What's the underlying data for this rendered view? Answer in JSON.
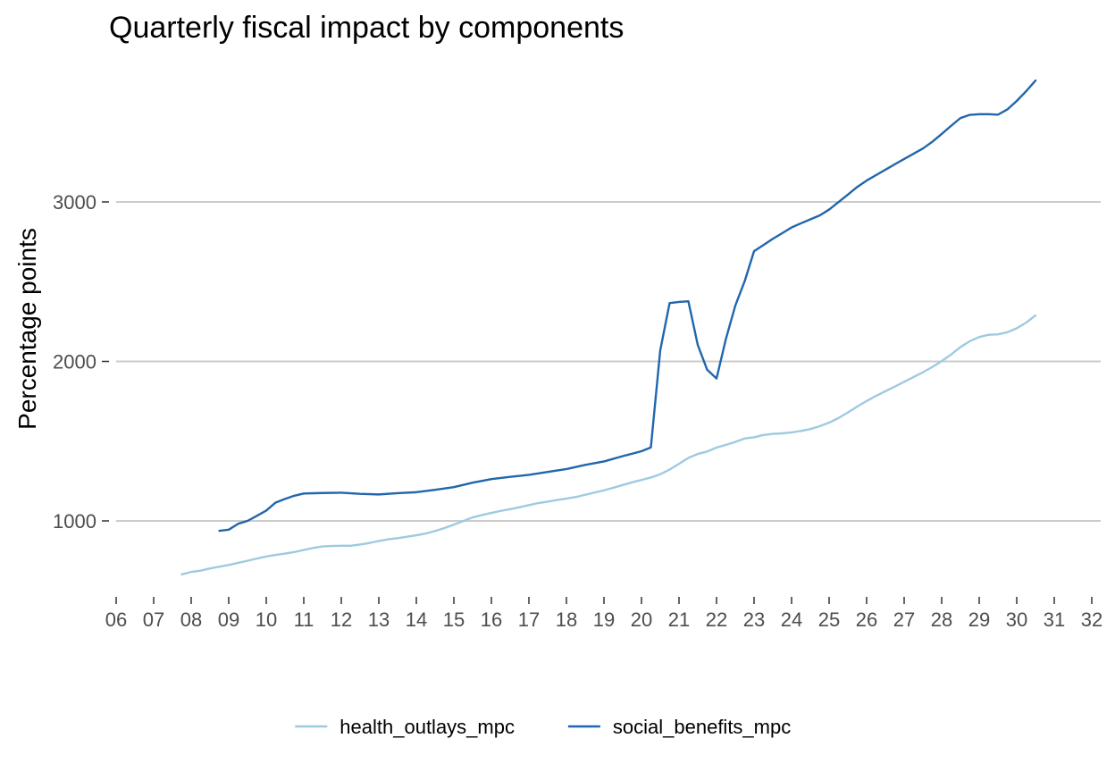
{
  "chart_data": {
    "type": "line",
    "title": "Quarterly fiscal impact  by components",
    "xlabel": "",
    "ylabel": "Percentage points",
    "x_axis": {
      "ticks": [
        2006,
        2007,
        2008,
        2009,
        2010,
        2011,
        2012,
        2013,
        2014,
        2015,
        2016,
        2017,
        2018,
        2019,
        2020,
        2021,
        2022,
        2023,
        2024,
        2025,
        2026,
        2027,
        2028,
        2029,
        2030,
        2031,
        2032
      ],
      "tick_labels": [
        "06",
        "07",
        "08",
        "09",
        "10",
        "11",
        "12",
        "13",
        "14",
        "15",
        "16",
        "17",
        "18",
        "19",
        "20",
        "21",
        "22",
        "23",
        "24",
        "25",
        "26",
        "27",
        "28",
        "29",
        "30",
        "31",
        "32"
      ],
      "range": [
        2006,
        2032
      ]
    },
    "y_axis": {
      "ticks": [
        1000,
        2000,
        3000
      ],
      "tick_labels": [
        "1000",
        "2000",
        "3000"
      ],
      "range": [
        620,
        3830
      ]
    },
    "grid": "horizontal-major",
    "legend_position": "bottom",
    "series": [
      {
        "name": "health_outlays_mpc",
        "color": "#9ecae1",
        "points": [
          [
            2007.75,
            665
          ],
          [
            2008.0,
            680
          ],
          [
            2008.25,
            688
          ],
          [
            2008.5,
            702
          ],
          [
            2008.75,
            713
          ],
          [
            2009.0,
            724
          ],
          [
            2009.25,
            737
          ],
          [
            2009.5,
            750
          ],
          [
            2009.75,
            764
          ],
          [
            2010.0,
            777
          ],
          [
            2010.25,
            787
          ],
          [
            2010.5,
            795
          ],
          [
            2010.75,
            805
          ],
          [
            2011.0,
            818
          ],
          [
            2011.25,
            830
          ],
          [
            2011.5,
            840
          ],
          [
            2011.75,
            843
          ],
          [
            2012.0,
            844
          ],
          [
            2012.25,
            844
          ],
          [
            2012.5,
            852
          ],
          [
            2012.75,
            862
          ],
          [
            2013.0,
            874
          ],
          [
            2013.25,
            885
          ],
          [
            2013.5,
            892
          ],
          [
            2013.75,
            901
          ],
          [
            2014.0,
            910
          ],
          [
            2014.25,
            921
          ],
          [
            2014.5,
            937
          ],
          [
            2014.75,
            955
          ],
          [
            2015.0,
            977
          ],
          [
            2015.25,
            999
          ],
          [
            2015.5,
            1022
          ],
          [
            2015.75,
            1037
          ],
          [
            2016.0,
            1050
          ],
          [
            2016.25,
            1063
          ],
          [
            2016.5,
            1074
          ],
          [
            2016.75,
            1086
          ],
          [
            2017.0,
            1099
          ],
          [
            2017.25,
            1112
          ],
          [
            2017.5,
            1121
          ],
          [
            2017.75,
            1131
          ],
          [
            2018.0,
            1140
          ],
          [
            2018.25,
            1150
          ],
          [
            2018.5,
            1164
          ],
          [
            2018.75,
            1178
          ],
          [
            2019.0,
            1192
          ],
          [
            2019.25,
            1208
          ],
          [
            2019.5,
            1225
          ],
          [
            2019.75,
            1242
          ],
          [
            2020.0,
            1257
          ],
          [
            2020.25,
            1272
          ],
          [
            2020.5,
            1293
          ],
          [
            2020.75,
            1322
          ],
          [
            2021.0,
            1358
          ],
          [
            2021.25,
            1395
          ],
          [
            2021.5,
            1420
          ],
          [
            2021.75,
            1435
          ],
          [
            2022.0,
            1460
          ],
          [
            2022.25,
            1477
          ],
          [
            2022.5,
            1495
          ],
          [
            2022.75,
            1517
          ],
          [
            2023.0,
            1524
          ],
          [
            2023.25,
            1539
          ],
          [
            2023.5,
            1546
          ],
          [
            2023.75,
            1549
          ],
          [
            2024.0,
            1555
          ],
          [
            2024.25,
            1564
          ],
          [
            2024.5,
            1576
          ],
          [
            2024.75,
            1594
          ],
          [
            2025.0,
            1616
          ],
          [
            2025.25,
            1645
          ],
          [
            2025.5,
            1680
          ],
          [
            2025.75,
            1717
          ],
          [
            2026.0,
            1752
          ],
          [
            2026.25,
            1784
          ],
          [
            2026.5,
            1813
          ],
          [
            2026.75,
            1842
          ],
          [
            2027.0,
            1872
          ],
          [
            2027.25,
            1902
          ],
          [
            2027.5,
            1932
          ],
          [
            2027.75,
            1965
          ],
          [
            2028.0,
            2002
          ],
          [
            2028.25,
            2043
          ],
          [
            2028.5,
            2090
          ],
          [
            2028.75,
            2127
          ],
          [
            2029.0,
            2153
          ],
          [
            2029.25,
            2167
          ],
          [
            2029.5,
            2170
          ],
          [
            2029.75,
            2183
          ],
          [
            2030.0,
            2208
          ],
          [
            2030.25,
            2243
          ],
          [
            2030.5,
            2288
          ]
        ]
      },
      {
        "name": "social_benefits_mpc",
        "color": "#2166ac",
        "points": [
          [
            2008.75,
            938
          ],
          [
            2009.0,
            945
          ],
          [
            2009.25,
            982
          ],
          [
            2009.5,
            1000
          ],
          [
            2009.75,
            1032
          ],
          [
            2010.0,
            1065
          ],
          [
            2010.25,
            1115
          ],
          [
            2010.5,
            1138
          ],
          [
            2010.75,
            1158
          ],
          [
            2011.0,
            1172
          ],
          [
            2011.5,
            1175
          ],
          [
            2012.0,
            1177
          ],
          [
            2012.5,
            1170
          ],
          [
            2013.0,
            1166
          ],
          [
            2013.5,
            1174
          ],
          [
            2014.0,
            1180
          ],
          [
            2014.5,
            1195
          ],
          [
            2015.0,
            1212
          ],
          [
            2015.5,
            1240
          ],
          [
            2016.0,
            1262
          ],
          [
            2016.5,
            1276
          ],
          [
            2017.0,
            1289
          ],
          [
            2017.5,
            1307
          ],
          [
            2018.0,
            1325
          ],
          [
            2018.5,
            1351
          ],
          [
            2019.0,
            1373
          ],
          [
            2019.5,
            1406
          ],
          [
            2020.0,
            1437
          ],
          [
            2020.25,
            1461
          ],
          [
            2020.5,
            2070
          ],
          [
            2020.75,
            2366
          ],
          [
            2021.0,
            2373
          ],
          [
            2021.25,
            2377
          ],
          [
            2021.5,
            2103
          ],
          [
            2021.75,
            1948
          ],
          [
            2022.0,
            1893
          ],
          [
            2022.25,
            2141
          ],
          [
            2022.5,
            2350
          ],
          [
            2022.75,
            2503
          ],
          [
            2023.0,
            2691
          ],
          [
            2023.25,
            2730
          ],
          [
            2023.5,
            2769
          ],
          [
            2023.75,
            2804
          ],
          [
            2024.0,
            2840
          ],
          [
            2024.25,
            2866
          ],
          [
            2024.5,
            2891
          ],
          [
            2024.75,
            2915
          ],
          [
            2025.0,
            2952
          ],
          [
            2025.25,
            2999
          ],
          [
            2025.5,
            3046
          ],
          [
            2025.75,
            3094
          ],
          [
            2026.0,
            3134
          ],
          [
            2026.25,
            3168
          ],
          [
            2026.5,
            3202
          ],
          [
            2026.75,
            3236
          ],
          [
            2027.0,
            3269
          ],
          [
            2027.25,
            3302
          ],
          [
            2027.5,
            3335
          ],
          [
            2027.75,
            3377
          ],
          [
            2028.0,
            3426
          ],
          [
            2028.25,
            3477
          ],
          [
            2028.5,
            3526
          ],
          [
            2028.75,
            3546
          ],
          [
            2029.0,
            3550
          ],
          [
            2029.25,
            3550
          ],
          [
            2029.5,
            3547
          ],
          [
            2029.75,
            3580
          ],
          [
            2030.0,
            3633
          ],
          [
            2030.25,
            3694
          ],
          [
            2030.5,
            3761
          ]
        ]
      }
    ]
  }
}
